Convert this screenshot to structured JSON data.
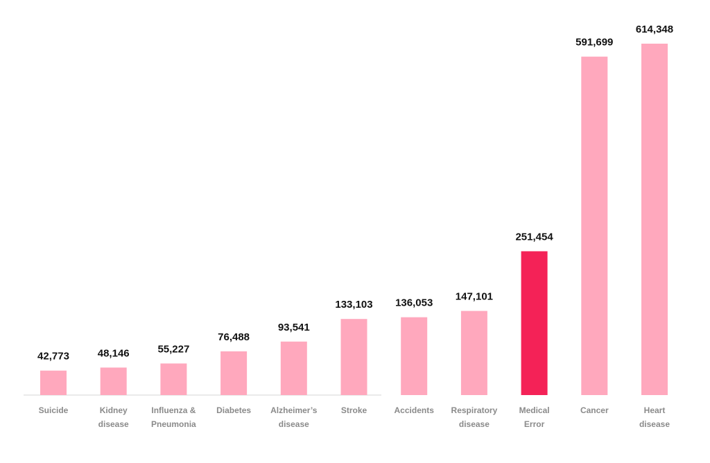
{
  "chart_data": {
    "type": "bar",
    "title": "",
    "xlabel": "",
    "ylabel": "",
    "ylim": [
      0,
      614348
    ],
    "grid": false,
    "colors": {
      "default_bar": "#FFA8BD",
      "highlight_bar": "#F42257",
      "axis": "#d6d6d6",
      "value_text": "#111111",
      "category_text": "#8a8a8a"
    },
    "highlight": "Medical Error",
    "categories": [
      "Suicide",
      "Kidney disease",
      "Influenza & Pneumonia",
      "Diabetes",
      "Alzheimer's disease",
      "Stroke",
      "Accidents",
      "Respiratory disease",
      "Medical Error",
      "Cancer",
      "Heart disease"
    ],
    "category_lines": [
      [
        "Suicide"
      ],
      [
        "Kidney",
        "disease"
      ],
      [
        "Influenza &",
        "Pneumonia"
      ],
      [
        "Diabetes"
      ],
      [
        "Alzheimer’s",
        "disease"
      ],
      [
        "Stroke"
      ],
      [
        "Accidents"
      ],
      [
        "Respiratory",
        "disease"
      ],
      [
        "Medical",
        "Error"
      ],
      [
        "Cancer"
      ],
      [
        "Heart",
        "disease"
      ]
    ],
    "values": [
      42773,
      48146,
      55227,
      76488,
      93541,
      133103,
      136053,
      147101,
      251454,
      591699,
      614348
    ],
    "value_labels": [
      "42,773",
      "48,146",
      "55,227",
      "76,488",
      "93,541",
      "133,103",
      "136,053",
      "147,101",
      "251,454",
      "591,699",
      "614,348"
    ]
  }
}
